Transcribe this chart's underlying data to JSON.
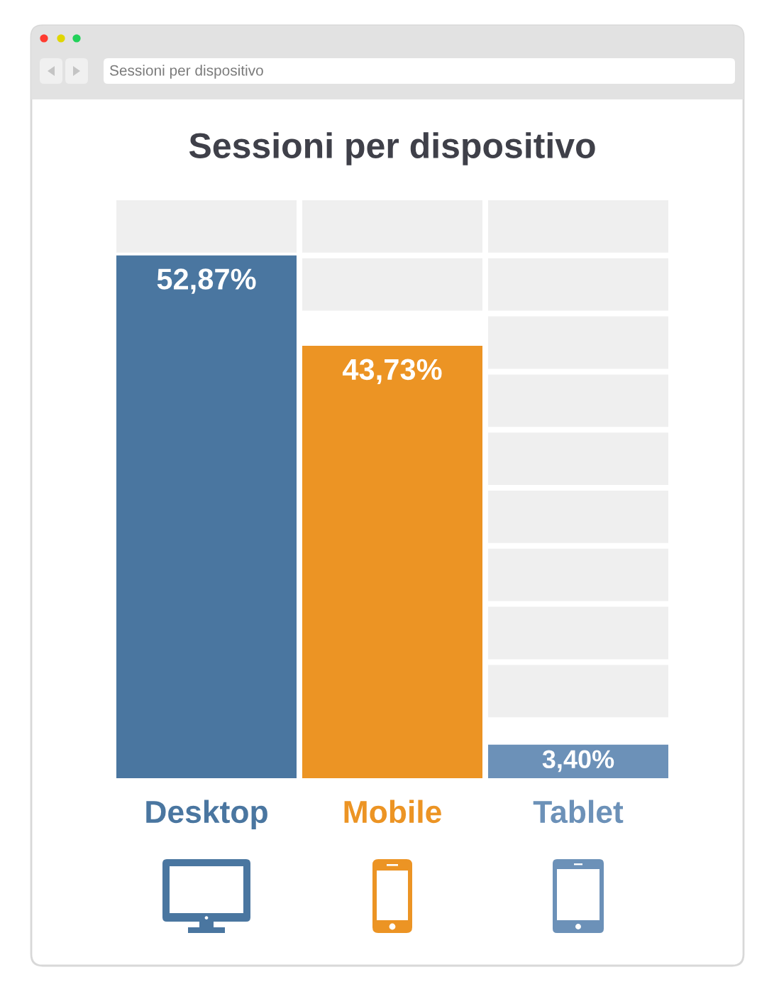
{
  "chart_data": {
    "type": "bar",
    "title": "Sessioni per dispositivo",
    "categories": [
      "Desktop",
      "Mobile",
      "Tablet"
    ],
    "values": [
      52.87,
      43.73,
      3.4
    ],
    "colors": [
      "#4a76a0",
      "#ec9424",
      "#6c91b8"
    ],
    "value_labels": [
      "52,87%",
      "43,73%",
      "3,40%"
    ],
    "annotations": [
      "Sessioni per dispositivo"
    ]
  }
}
